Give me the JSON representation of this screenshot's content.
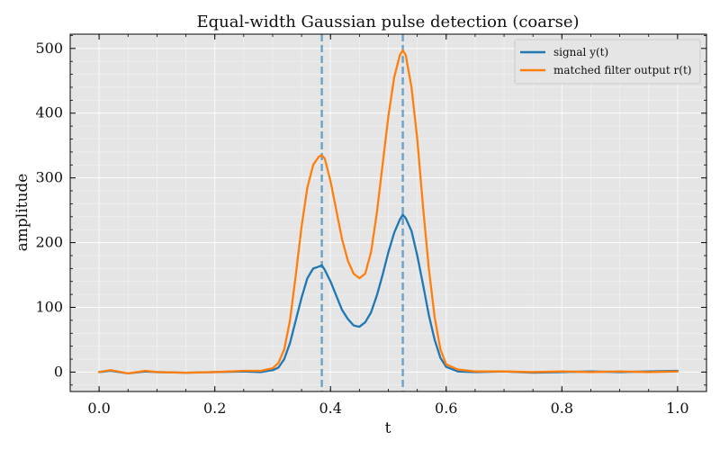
{
  "chart_data": {
    "type": "line",
    "title": "Equal-width Gaussian pulse detection (coarse)",
    "xlabel": "t",
    "ylabel": "amplitude",
    "xlim": [
      -0.05,
      1.05
    ],
    "ylim": [
      -30,
      522
    ],
    "xticks": [
      0.0,
      0.2,
      0.4,
      0.6,
      0.8,
      1.0
    ],
    "xtick_labels": [
      "0.0",
      "0.2",
      "0.4",
      "0.6",
      "0.8",
      "1.0"
    ],
    "yticks": [
      0,
      100,
      200,
      300,
      400,
      500
    ],
    "ytick_labels": [
      "0",
      "100",
      "200",
      "300",
      "400",
      "500"
    ],
    "grid": true,
    "legend_position": "top-right",
    "vlines": [
      0.385,
      0.525
    ],
    "series": [
      {
        "name": "signal y(t)",
        "color": "#1f77b4",
        "x": [
          0.0,
          0.02,
          0.05,
          0.08,
          0.1,
          0.15,
          0.2,
          0.25,
          0.28,
          0.3,
          0.31,
          0.32,
          0.33,
          0.34,
          0.35,
          0.36,
          0.37,
          0.38,
          0.385,
          0.39,
          0.4,
          0.41,
          0.42,
          0.43,
          0.44,
          0.45,
          0.46,
          0.47,
          0.48,
          0.49,
          0.5,
          0.51,
          0.52,
          0.525,
          0.53,
          0.54,
          0.55,
          0.56,
          0.57,
          0.58,
          0.59,
          0.6,
          0.62,
          0.65,
          0.7,
          0.75,
          0.8,
          0.85,
          0.9,
          0.95,
          1.0
        ],
        "y": [
          0,
          2,
          -2,
          1,
          0,
          -1,
          0,
          1,
          0,
          3,
          7,
          20,
          45,
          80,
          115,
          145,
          160,
          163,
          165,
          158,
          140,
          118,
          96,
          82,
          72,
          70,
          77,
          92,
          118,
          150,
          185,
          215,
          236,
          243,
          238,
          218,
          180,
          135,
          88,
          50,
          22,
          8,
          1,
          0,
          1,
          -1,
          0,
          1,
          0,
          1,
          2
        ]
      },
      {
        "name": "matched filter output r(t)",
        "color": "#ff7f0e",
        "x": [
          0.0,
          0.02,
          0.05,
          0.08,
          0.1,
          0.15,
          0.2,
          0.25,
          0.28,
          0.3,
          0.31,
          0.32,
          0.33,
          0.34,
          0.35,
          0.36,
          0.37,
          0.38,
          0.385,
          0.39,
          0.4,
          0.41,
          0.42,
          0.43,
          0.44,
          0.45,
          0.46,
          0.47,
          0.48,
          0.49,
          0.5,
          0.51,
          0.52,
          0.525,
          0.53,
          0.54,
          0.55,
          0.56,
          0.57,
          0.58,
          0.59,
          0.6,
          0.62,
          0.65,
          0.7,
          0.75,
          0.8,
          0.85,
          0.9,
          0.95,
          1.0
        ],
        "y": [
          0,
          3,
          -2,
          2,
          0,
          -1,
          0,
          2,
          2,
          6,
          14,
          35,
          80,
          150,
          225,
          285,
          320,
          333,
          335,
          330,
          295,
          250,
          205,
          172,
          152,
          145,
          152,
          185,
          245,
          320,
          395,
          455,
          490,
          497,
          490,
          440,
          360,
          255,
          160,
          85,
          35,
          12,
          4,
          1,
          1,
          0,
          1,
          0,
          1,
          0,
          1
        ]
      }
    ]
  }
}
